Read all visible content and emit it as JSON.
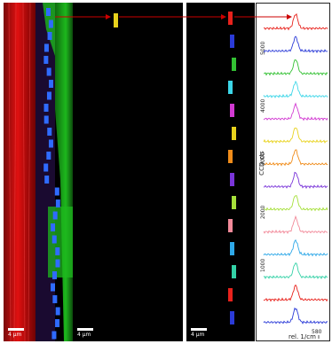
{
  "scale_bar_label": "4 µm",
  "spectra": {
    "ylabel": "CCD cts",
    "xlabel": "rel. 1/cm",
    "ytick_labels": [
      "1000",
      "2000",
      "3000",
      "4000",
      "5000"
    ],
    "xtick_label": "580",
    "colors": [
      "#e8221c",
      "#2b3bd8",
      "#33c133",
      "#3cd6e8",
      "#d23ad2",
      "#e8d21c",
      "#f08c1a",
      "#7a35d9",
      "#a6e03a",
      "#f28a9a",
      "#2ea8e8",
      "#33d1a6",
      "#e8221c",
      "#2b3bd8"
    ]
  },
  "colors": {
    "red_fluor": "#e01010",
    "green_fluor": "#1db81d",
    "blue_marker": "#2f6bff",
    "arrow": "#cc0000"
  }
}
